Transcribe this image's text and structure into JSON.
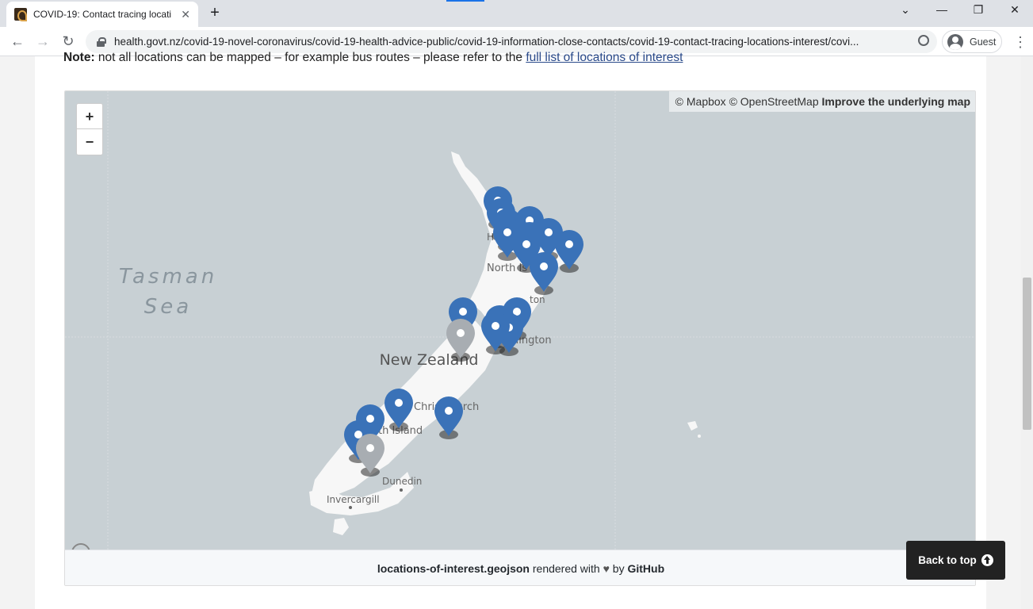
{
  "browser": {
    "tab_title": "COVID-19: Contact tracing locati",
    "tab_close": "✕",
    "new_tab": "+",
    "url": "health.govt.nz/covid-19-novel-coronavirus/covid-19-health-advice-public/covid-19-information-close-contacts/covid-19-contact-tracing-locations-interest/covi...",
    "profile_label": "Guest",
    "back_glyph": "←",
    "forward_glyph": "→",
    "reload_glyph": "↻",
    "minimize_glyph": "—",
    "restore_glyph": "❐",
    "close_glyph": "✕",
    "tabsearch_glyph": "⌄",
    "menu_glyph": "⋮"
  },
  "page": {
    "note_bold": "Note:",
    "note_text": " not all locations can be mapped – for example bus routes – please refer to the ",
    "note_link": "full list of locations of interest"
  },
  "map": {
    "zoom_in": "+",
    "zoom_out": "−",
    "attribution_mapbox": "© Mapbox",
    "attribution_osm": "© OpenStreetMap",
    "attribution_improve": "Improve the underlying map",
    "labels": {
      "tasman1": "Tasman",
      "tasman2": "Sea",
      "country": "New Zealand",
      "north_island": "North Is",
      "wellington": "llington",
      "ton": "ton",
      "christchurch": "Christchurch",
      "south_island": "th Island",
      "dunedin": "Dunedin",
      "invercargill": "Invercargill",
      "ha": "Ha"
    },
    "colors": {
      "water": "#c8d0d4",
      "land": "#f7f7f7",
      "marker_blue": "#3a72b8",
      "marker_grey": "#a8adb2"
    }
  },
  "embed_footer": {
    "file": "locations-of-interest.geojson",
    "middle": " rendered with ",
    "heart": "♥",
    "by": " by ",
    "github": "GitHub"
  },
  "back_to_top": "Back to top"
}
